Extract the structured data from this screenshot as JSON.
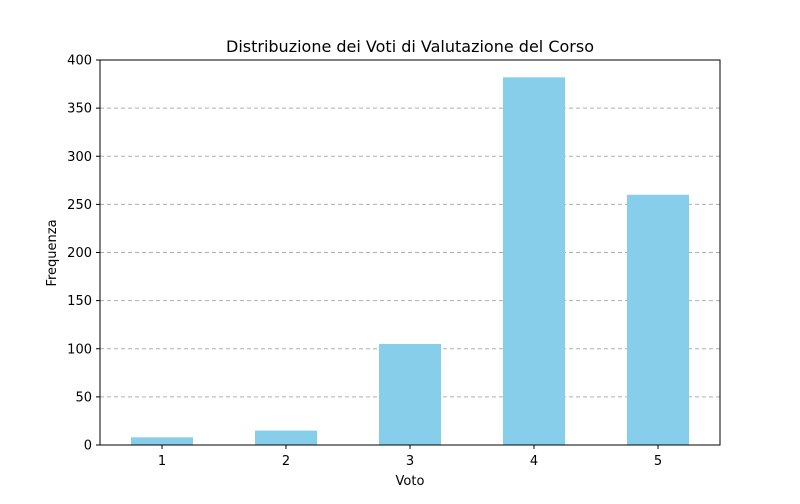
{
  "chart_data": {
    "type": "bar",
    "title": "Distribuzione dei Voti di Valutazione del Corso",
    "xlabel": "Voto",
    "ylabel": "Frequenza",
    "categories": [
      "1",
      "2",
      "3",
      "4",
      "5"
    ],
    "values": [
      8,
      15,
      105,
      382,
      260
    ],
    "ylim": [
      0,
      400
    ],
    "yticks": [
      "0",
      "50",
      "100",
      "150",
      "200",
      "250",
      "300",
      "350",
      "400"
    ],
    "grid": "horizontal-dashed",
    "legend": "none",
    "colors": {
      "bar": "#87ceeb",
      "grid": "#b0b0b0",
      "axis": "#000000"
    }
  }
}
